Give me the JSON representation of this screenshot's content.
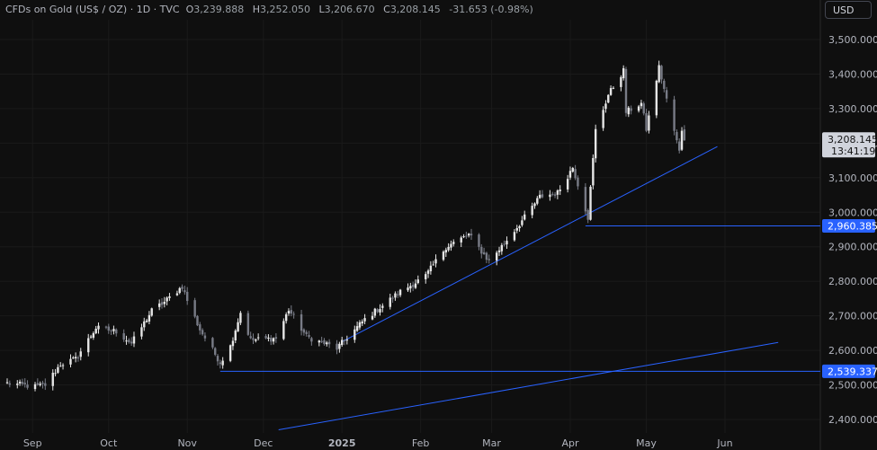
{
  "header": {
    "title": "CFDs on Gold (US$ / OZ) · 1D · TVC",
    "open_label": "O",
    "open": "3,239.888",
    "high_label": "H",
    "high": "3,252.050",
    "low_label": "L",
    "low": "3,206.670",
    "close_label": "C",
    "close": "3,208.145",
    "change": "-31.653 (-0.98%)"
  },
  "currency_button": "USD",
  "price_labels": {
    "current_price": "3,208.145",
    "countdown": "13:41:19",
    "support_1": "2,960.385",
    "support_2": "2,539.337"
  },
  "colors": {
    "background": "#0f0f0f",
    "candle_up": "#e6e6e6",
    "candle_down": "#787b86",
    "trendline": "#2962ff",
    "price_tag": "#d1d4dc"
  },
  "chart_data": {
    "type": "candlestick",
    "title": "CFDs on Gold (US$ / OZ) · 1D · TVC",
    "ylim": [
      2375,
      3540
    ],
    "y_ticks": [
      "2,400.000",
      "2,500.000",
      "2,600.000",
      "2,700.000",
      "2,800.000",
      "2,900.000",
      "3,000.000",
      "3,100.000",
      "3,200.000",
      "3,300.000",
      "3,400.000",
      "3,500.000"
    ],
    "y_tick_values": [
      2400,
      2500,
      2600,
      2700,
      2800,
      2900,
      3000,
      3100,
      3200,
      3300,
      3400,
      3500
    ],
    "x_ticks": [
      "Sep",
      "Oct",
      "Nov",
      "Dec",
      "2025",
      "Feb",
      "Mar",
      "Apr",
      "May",
      "Jun"
    ],
    "x_tick_dates": [
      "2024-09-01",
      "2024-10-01",
      "2024-11-01",
      "2024-12-01",
      "2025-01-01",
      "2025-02-01",
      "2025-03-01",
      "2025-04-01",
      "2025-05-01",
      "2025-06-01"
    ],
    "x_range": [
      "2024-08-22",
      "2025-06-23"
    ],
    "anchors": [
      [
        "2024-08-22",
        2505
      ],
      [
        "2024-09-02",
        2495
      ],
      [
        "2024-09-06",
        2500
      ],
      [
        "2024-09-12",
        2560
      ],
      [
        "2024-09-18",
        2575
      ],
      [
        "2024-09-26",
        2665
      ],
      [
        "2024-10-04",
        2655
      ],
      [
        "2024-10-10",
        2620
      ],
      [
        "2024-10-18",
        2715
      ],
      [
        "2024-10-23",
        2740
      ],
      [
        "2024-10-30",
        2785
      ],
      [
        "2024-11-01",
        2745
      ],
      [
        "2024-11-06",
        2660
      ],
      [
        "2024-11-14",
        2565
      ],
      [
        "2024-11-18",
        2612
      ],
      [
        "2024-11-22",
        2710
      ],
      [
        "2024-11-26",
        2630
      ],
      [
        "2024-12-06",
        2635
      ],
      [
        "2024-12-11",
        2718
      ],
      [
        "2024-12-18",
        2640
      ],
      [
        "2024-12-30",
        2606
      ],
      [
        "2025-01-10",
        2690
      ],
      [
        "2025-01-24",
        2770
      ],
      [
        "2025-02-03",
        2815
      ],
      [
        "2025-02-11",
        2900
      ],
      [
        "2025-02-20",
        2935
      ],
      [
        "2025-02-28",
        2858
      ],
      [
        "2025-03-06",
        2910
      ],
      [
        "2025-03-14",
        2985
      ],
      [
        "2025-03-20",
        3045
      ],
      [
        "2025-03-27",
        3056
      ],
      [
        "2025-04-02",
        3130
      ],
      [
        "2025-04-08",
        2985
      ],
      [
        "2025-04-11",
        3237
      ],
      [
        "2025-04-16",
        3340
      ],
      [
        "2025-04-22",
        3410
      ],
      [
        "2025-04-23",
        3290
      ],
      [
        "2025-04-29",
        3315
      ],
      [
        "2025-05-01",
        3240
      ],
      [
        "2025-05-06",
        3420
      ],
      [
        "2025-05-09",
        3325
      ],
      [
        "2025-05-12",
        3235
      ],
      [
        "2025-05-14",
        3175
      ],
      [
        "2025-05-15",
        3239.888
      ],
      [
        "2025-05-16",
        3208.145
      ]
    ],
    "horizontal_lines": [
      {
        "value": 2960.385,
        "from": "2025-04-07"
      },
      {
        "value": 2539.337,
        "from": "2024-11-14"
      }
    ],
    "trendlines": [
      {
        "from": [
          "2025-01-01",
          2625
        ],
        "to": [
          "2025-05-29",
          3190
        ]
      },
      {
        "from": [
          "2024-12-07",
          2370
        ],
        "to": [
          "2025-06-22",
          2623
        ]
      }
    ]
  }
}
